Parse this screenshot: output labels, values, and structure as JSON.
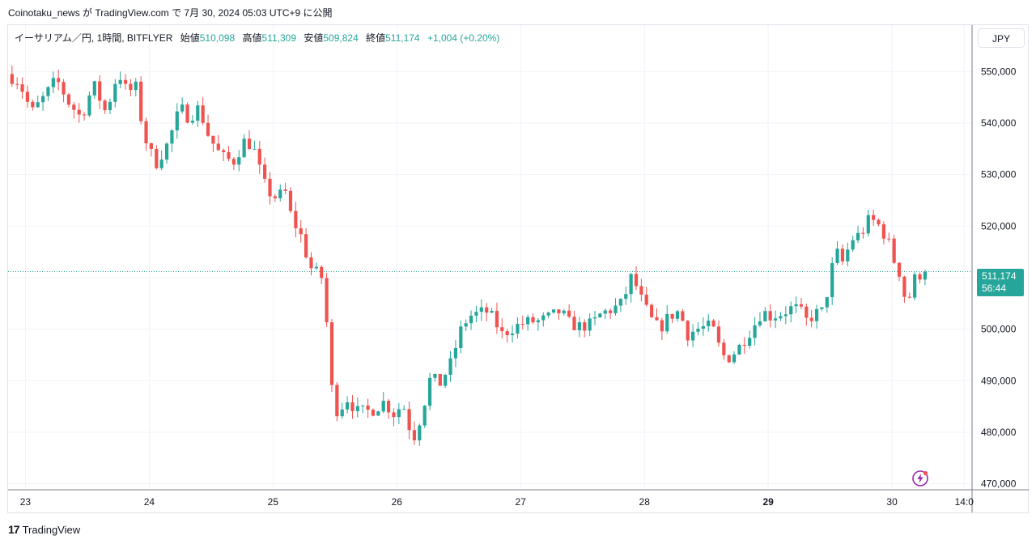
{
  "header": {
    "published_text": "Coinotaku_news が TradingView.com で 7月 30, 2024 05:03 UTC+9 に公開"
  },
  "legend": {
    "symbol": "イーサリアム／円, 1時間, BITFLYER",
    "open_label": "始値",
    "open_value": "510,098",
    "high_label": "高値",
    "high_value": "511,309",
    "low_label": "安値",
    "low_value": "509,824",
    "close_label": "終値",
    "close_value": "511,174",
    "change": "+1,004 (+0.20%)"
  },
  "currency_button": "JPY",
  "last_price": {
    "price": "511,174",
    "countdown": "56:44"
  },
  "footer": {
    "brand": "TradingView",
    "logo_glyph": "17"
  },
  "colors": {
    "up": "#26a69a",
    "down": "#ef5350",
    "grid": "#f0f3fa",
    "text": "#131722",
    "price_line": "#26a69a",
    "accent": "#9c27b0"
  },
  "chart_data": {
    "type": "candlestick",
    "interval": "1h",
    "x_tick_labels": [
      "23",
      "24",
      "25",
      "26",
      "27",
      "28",
      "29",
      "30",
      "14:0"
    ],
    "x_tick_values": [
      23,
      24,
      25,
      26,
      27,
      28,
      29,
      30,
      30.583
    ],
    "y_tick_labels": [
      "470,000",
      "480,000",
      "490,000",
      "500,000",
      "510,000",
      "520,000",
      "530,000",
      "540,000",
      "550,000"
    ],
    "y_tick_values": [
      470000,
      480000,
      490000,
      500000,
      510000,
      520000,
      530000,
      540000,
      550000
    ],
    "ylim": [
      469000,
      559000
    ],
    "xlim": [
      22.86,
      30.64
    ],
    "grid": true,
    "last_price": 511174,
    "close_path": [
      [
        22.85,
        549500
      ],
      [
        22.95,
        548000
      ],
      [
        23.05,
        542000
      ],
      [
        23.15,
        545000
      ],
      [
        23.25,
        548500
      ],
      [
        23.35,
        544000
      ],
      [
        23.45,
        541000
      ],
      [
        23.55,
        547500
      ],
      [
        23.65,
        542000
      ],
      [
        23.75,
        550000
      ],
      [
        23.82,
        546000
      ],
      [
        23.9,
        547000
      ],
      [
        23.95,
        538000
      ],
      [
        24.05,
        532000
      ],
      [
        24.15,
        536000
      ],
      [
        24.25,
        543000
      ],
      [
        24.32,
        541000
      ],
      [
        24.4,
        543000
      ],
      [
        24.48,
        537500
      ],
      [
        24.58,
        533500
      ],
      [
        24.68,
        532500
      ],
      [
        24.78,
        537000
      ],
      [
        24.85,
        534500
      ],
      [
        24.92,
        528500
      ],
      [
        25.0,
        525500
      ],
      [
        25.1,
        526500
      ],
      [
        25.15,
        521500
      ],
      [
        25.22,
        518500
      ],
      [
        25.3,
        512000
      ],
      [
        25.37,
        510500
      ],
      [
        25.42,
        509500
      ],
      [
        25.45,
        491000
      ],
      [
        25.52,
        484000
      ],
      [
        25.6,
        486500
      ],
      [
        25.68,
        484000
      ],
      [
        25.75,
        484000
      ],
      [
        25.82,
        484500
      ],
      [
        25.9,
        486000
      ],
      [
        25.97,
        483500
      ],
      [
        26.05,
        485500
      ],
      [
        26.13,
        478500
      ],
      [
        26.2,
        483500
      ],
      [
        26.27,
        490500
      ],
      [
        26.35,
        489500
      ],
      [
        26.45,
        494000
      ],
      [
        26.5,
        499000
      ],
      [
        26.58,
        502500
      ],
      [
        26.65,
        503000
      ],
      [
        26.72,
        503500
      ],
      [
        26.78,
        502000
      ],
      [
        26.85,
        499000
      ],
      [
        26.92,
        500000
      ],
      [
        27.0,
        501000
      ],
      [
        27.08,
        501500
      ],
      [
        27.15,
        501500
      ],
      [
        27.25,
        502500
      ],
      [
        27.32,
        503500
      ],
      [
        27.4,
        501000
      ],
      [
        27.48,
        500500
      ],
      [
        27.58,
        501000
      ],
      [
        27.65,
        503000
      ],
      [
        27.75,
        504000
      ],
      [
        27.82,
        505000
      ],
      [
        27.9,
        510500
      ],
      [
        27.97,
        506000
      ],
      [
        28.05,
        502000
      ],
      [
        28.12,
        500000
      ],
      [
        28.2,
        502500
      ],
      [
        28.28,
        503500
      ],
      [
        28.35,
        499000
      ],
      [
        28.42,
        500000
      ],
      [
        28.52,
        500500
      ],
      [
        28.57,
        499500
      ],
      [
        28.62,
        495000
      ],
      [
        28.68,
        494500
      ],
      [
        28.75,
        496000
      ],
      [
        28.82,
        498500
      ],
      [
        28.88,
        500500
      ],
      [
        28.95,
        503500
      ],
      [
        29.02,
        502500
      ],
      [
        29.1,
        503000
      ],
      [
        29.18,
        504000
      ],
      [
        29.25,
        504000
      ],
      [
        29.3,
        501500
      ],
      [
        29.38,
        503000
      ],
      [
        29.45,
        503500
      ],
      [
        29.5,
        510500
      ],
      [
        29.55,
        515000
      ],
      [
        29.6,
        513000
      ],
      [
        29.68,
        517500
      ],
      [
        29.75,
        518500
      ],
      [
        29.82,
        521500
      ],
      [
        29.9,
        520000
      ],
      [
        29.97,
        517000
      ],
      [
        30.02,
        513000
      ],
      [
        30.07,
        510500
      ],
      [
        30.12,
        504000
      ],
      [
        30.17,
        509500
      ],
      [
        30.22,
        510500
      ],
      [
        30.25,
        511174
      ]
    ]
  }
}
